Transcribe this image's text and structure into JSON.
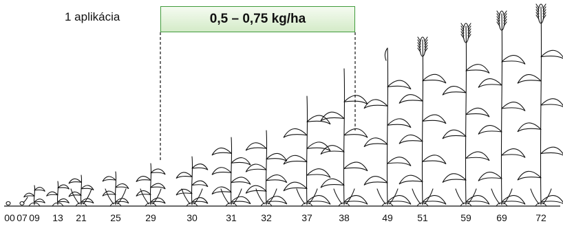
{
  "application_label": "1 aplikácia",
  "dose_label": "0,5 – 0,75 kg/ha",
  "colors": {
    "box_border": "#3f9a3a",
    "box_fill": "#d4ebc8",
    "line": "#111111"
  },
  "growth_stages": [
    "00",
    "07",
    "09",
    "13",
    "21",
    "25",
    "29",
    "30",
    "31",
    "32",
    "37",
    "38",
    "49",
    "51",
    "59",
    "69",
    "72"
  ],
  "application_window": {
    "from_stage": "29",
    "to_stage": "38"
  }
}
